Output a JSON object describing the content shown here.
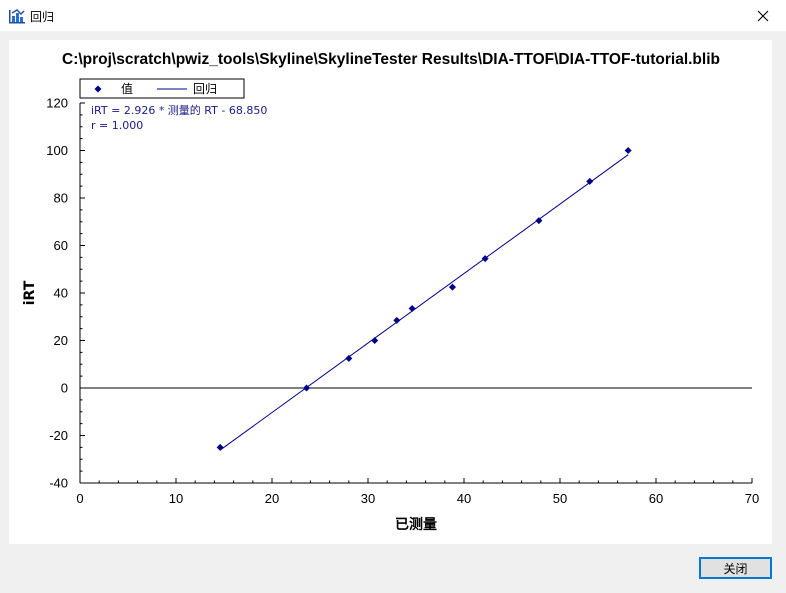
{
  "window": {
    "title": "回归",
    "icon": "regression-chart-icon",
    "close_icon": "close-icon"
  },
  "footer": {
    "close_label": "关闭"
  },
  "colors": {
    "series": "#00008b",
    "zero_line": "#000000",
    "accent_border": "#0078d7"
  },
  "chart_data": {
    "type": "scatter",
    "title": "C:\\proj\\scratch\\pwiz_tools\\Skyline\\SkylineTester  Results\\DIA-TTOF\\DIA-TTOF-tutorial.blib",
    "xlabel": "已测量",
    "ylabel": "iRT",
    "xlim": [
      0,
      70
    ],
    "ylim": [
      -40,
      120
    ],
    "x_ticks": [
      0,
      10,
      20,
      30,
      40,
      50,
      60,
      70
    ],
    "y_ticks": [
      -40,
      -20,
      0,
      20,
      40,
      60,
      80,
      100,
      120
    ],
    "grid": false,
    "legend_position": "top-left",
    "legend": [
      "值",
      "回归"
    ],
    "annotations": [
      "iRT = 2.926 * 测量的 RT - 68.850",
      "r = 1.000"
    ],
    "series": [
      {
        "name": "值",
        "kind": "points",
        "points": [
          {
            "x": 14.6,
            "y": -25.0
          },
          {
            "x": 23.6,
            "y": 0.0
          },
          {
            "x": 28.0,
            "y": 12.5
          },
          {
            "x": 30.7,
            "y": 20.0
          },
          {
            "x": 33.0,
            "y": 28.5
          },
          {
            "x": 34.6,
            "y": 33.5
          },
          {
            "x": 38.8,
            "y": 42.5
          },
          {
            "x": 42.2,
            "y": 54.5
          },
          {
            "x": 47.8,
            "y": 70.5
          },
          {
            "x": 53.1,
            "y": 87.0
          },
          {
            "x": 57.1,
            "y": 100.0
          }
        ]
      },
      {
        "name": "回归",
        "kind": "line",
        "slope": 2.926,
        "intercept": -68.85,
        "x_range": [
          14.6,
          57.1
        ]
      }
    ]
  }
}
